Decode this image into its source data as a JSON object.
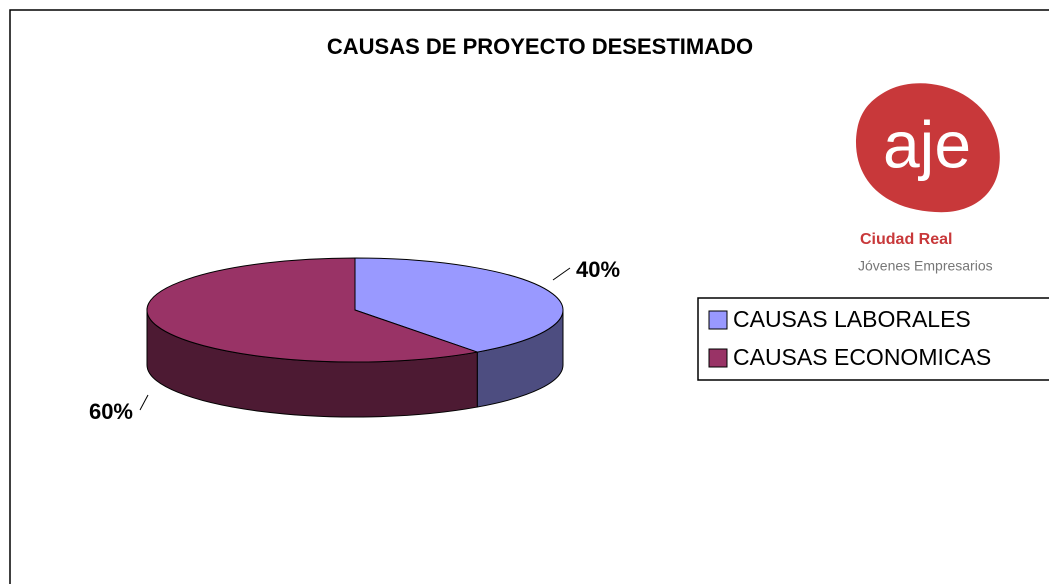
{
  "chart_data": {
    "type": "pie",
    "title": "CAUSAS DE PROYECTO DESESTIMADO",
    "categories": [
      "CAUSAS LABORALES",
      "CAUSAS ECONOMICAS"
    ],
    "values": [
      40,
      60
    ],
    "value_labels": [
      "40%",
      "60%"
    ],
    "colors": [
      "#9999ff",
      "#993366"
    ],
    "legend": "right",
    "logo": {
      "mark": "aje",
      "line1": "Ciudad Real",
      "line2": "Jóvenes Empresarios"
    }
  }
}
